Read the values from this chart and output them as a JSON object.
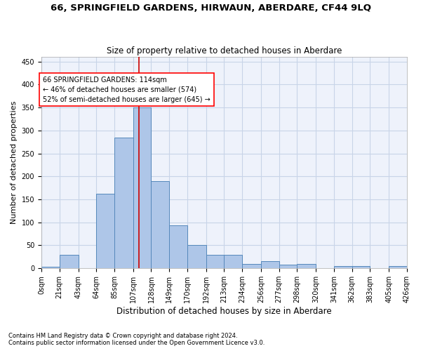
{
  "title": "66, SPRINGFIELD GARDENS, HIRWAUN, ABERDARE, CF44 9LQ",
  "subtitle": "Size of property relative to detached houses in Aberdare",
  "xlabel": "Distribution of detached houses by size in Aberdare",
  "ylabel": "Number of detached properties",
  "footnote1": "Contains HM Land Registry data © Crown copyright and database right 2024.",
  "footnote2": "Contains public sector information licensed under the Open Government Licence v3.0.",
  "annotation_line1": "66 SPRINGFIELD GARDENS: 114sqm",
  "annotation_line2": "← 46% of detached houses are smaller (574)",
  "annotation_line3": "52% of semi-detached houses are larger (645) →",
  "bar_color": "#aec6e8",
  "bar_edge_color": "#5588bb",
  "ref_line_color": "#cc0000",
  "ref_line_x": 114,
  "bin_edges": [
    0,
    21,
    43,
    64,
    85,
    107,
    128,
    149,
    170,
    192,
    213,
    234,
    256,
    277,
    298,
    320,
    341,
    362,
    383,
    405,
    426
  ],
  "bin_labels": [
    "0sqm",
    "21sqm",
    "43sqm",
    "64sqm",
    "85sqm",
    "107sqm",
    "128sqm",
    "149sqm",
    "170sqm",
    "192sqm",
    "213sqm",
    "234sqm",
    "256sqm",
    "277sqm",
    "298sqm",
    "320sqm",
    "341sqm",
    "362sqm",
    "383sqm",
    "405sqm",
    "426sqm"
  ],
  "bar_heights": [
    3,
    30,
    0,
    162,
    285,
    350,
    190,
    93,
    50,
    30,
    30,
    10,
    15,
    8,
    10,
    0,
    5,
    5,
    0,
    5
  ],
  "ylim": [
    0,
    460
  ],
  "yticks": [
    0,
    50,
    100,
    150,
    200,
    250,
    300,
    350,
    400,
    450
  ],
  "background_color": "#eef2fb",
  "grid_color": "#c8d4e8",
  "title_fontsize": 9.5,
  "subtitle_fontsize": 8.5,
  "ylabel_fontsize": 8,
  "xlabel_fontsize": 8.5,
  "tick_fontsize": 7,
  "annot_fontsize": 7,
  "footnote_fontsize": 6
}
